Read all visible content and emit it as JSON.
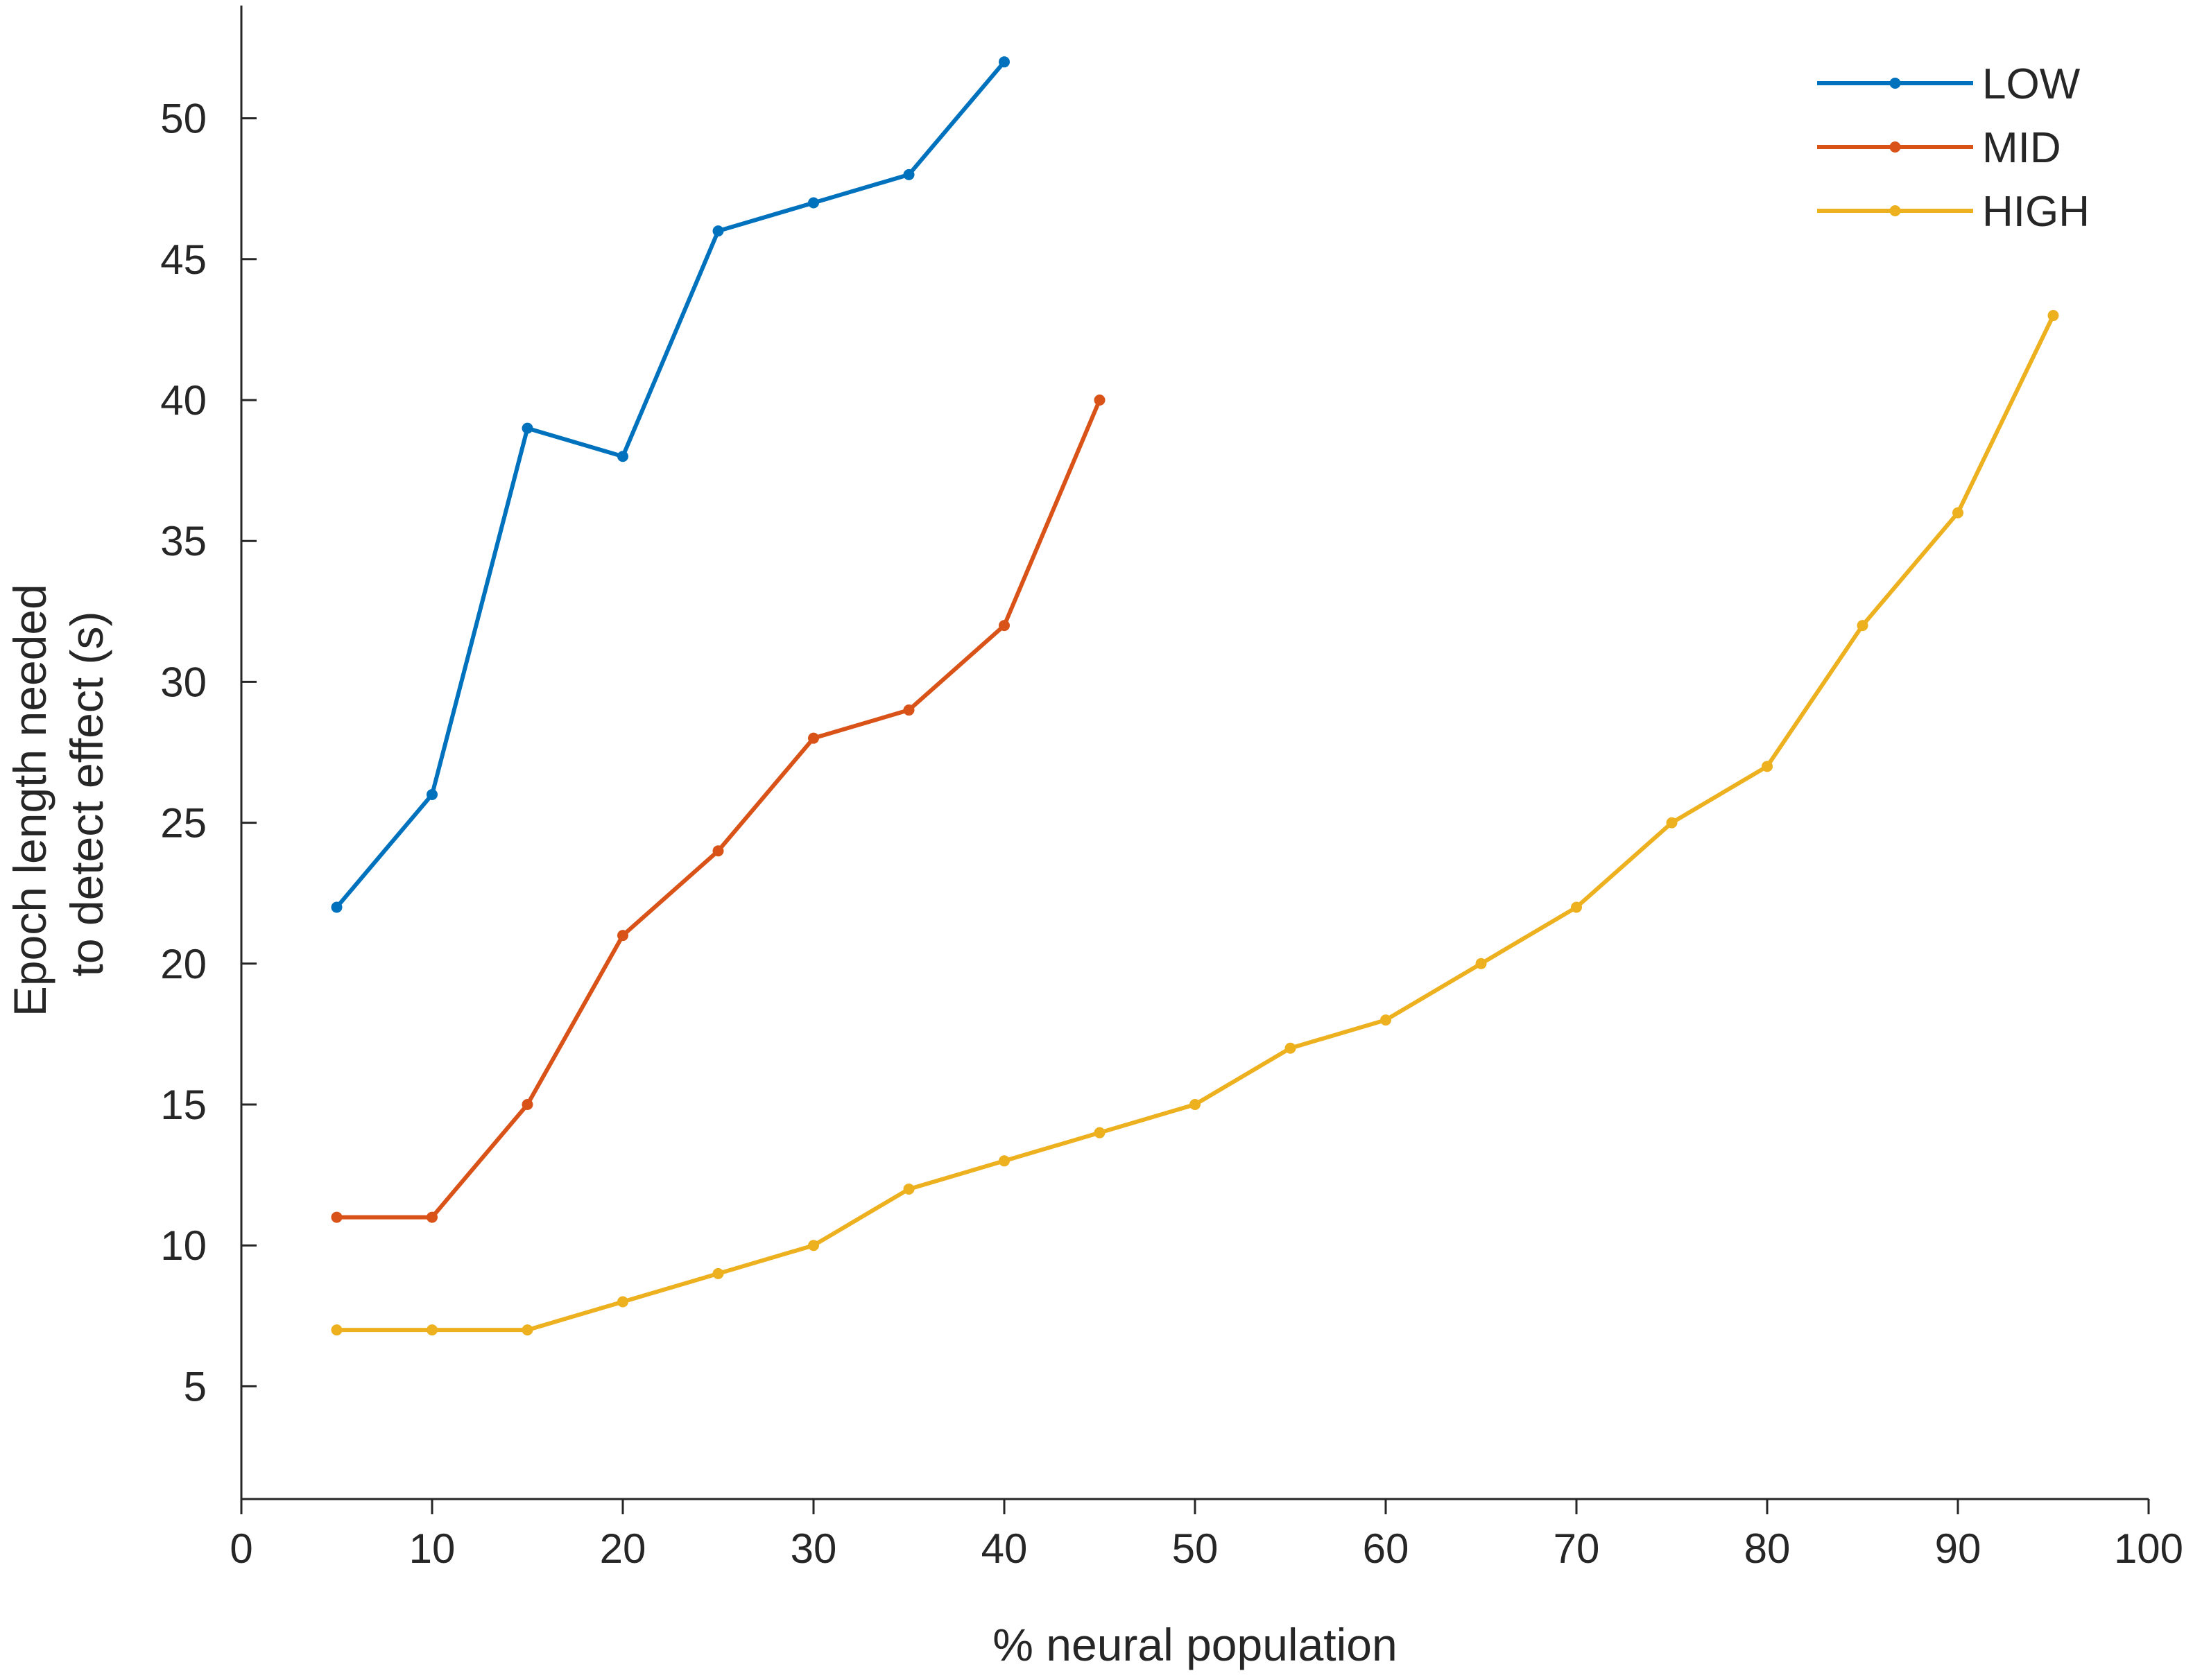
{
  "chart_data": {
    "type": "line",
    "title": "",
    "xlabel": "% neural population",
    "ylabel_lines": [
      "Epoch length needed",
      "to detect effect (s)"
    ],
    "xlim": [
      0,
      100
    ],
    "ylim": [
      1,
      54
    ],
    "xticks": [
      0,
      10,
      20,
      30,
      40,
      50,
      60,
      70,
      80,
      90,
      100
    ],
    "yticks": [
      5,
      10,
      15,
      20,
      25,
      30,
      35,
      40,
      45,
      50
    ],
    "grid": false,
    "legend_position": "top-right",
    "series": [
      {
        "name": "LOW",
        "color": "#0072BD",
        "x": [
          5,
          10,
          15,
          20,
          25,
          30,
          35,
          40
        ],
        "y": [
          22,
          26,
          39,
          38,
          46,
          47,
          48,
          52
        ]
      },
      {
        "name": "MID",
        "color": "#D95319",
        "x": [
          5,
          10,
          15,
          20,
          25,
          30,
          35,
          40,
          45
        ],
        "y": [
          11,
          11,
          15,
          21,
          24,
          28,
          29,
          32,
          40
        ]
      },
      {
        "name": "HIGH",
        "color": "#EDB120",
        "x": [
          5,
          10,
          15,
          20,
          25,
          30,
          35,
          40,
          45,
          50,
          55,
          60,
          65,
          70,
          75,
          80,
          85,
          90,
          95
        ],
        "y": [
          7,
          7,
          7,
          8,
          9,
          10,
          12,
          13,
          14,
          15,
          17,
          18,
          20,
          22,
          25,
          27,
          32,
          36,
          43
        ]
      }
    ]
  }
}
